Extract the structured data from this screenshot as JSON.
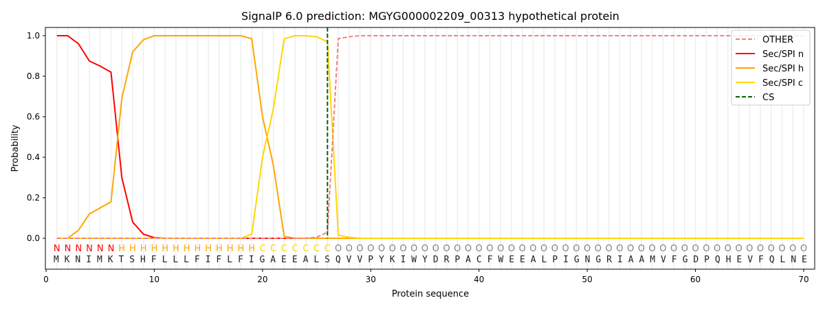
{
  "chart_data": {
    "type": "line",
    "title": "SignalP 6.0 prediction: MGYG000002209_00313 hypothetical protein",
    "xlabel": "Protein sequence",
    "ylabel": "Probability",
    "xlim": [
      0,
      71
    ],
    "ylim": [
      -0.15,
      1.05
    ],
    "xticks": [
      0,
      10,
      20,
      30,
      40,
      50,
      60,
      70
    ],
    "yticks": [
      0.0,
      0.2,
      0.4,
      0.6,
      0.8,
      1.0
    ],
    "ytick_labels": [
      "0.0",
      "0.2",
      "0.4",
      "0.6",
      "0.8",
      "1.0"
    ],
    "legend_position": "top-right",
    "sequence": "MKNIMKTSHFLLLFIFLFIGAEEALSQVVPYKIWYDRPACFWEEALPIGNGRIAAMVFGDPQHEVFQLNE",
    "labels": "NNNNNNHHHHHHHHHHHHHCCCCCCCOOOOOOOOOOOOOOOOOOOOOOOOOOOOOOOOOOOOOOOOOOOO",
    "label_colors": {
      "N": "#ff0000",
      "H": "#ffa500",
      "C": "#ffd700",
      "O": "#808080"
    },
    "cs_position": 26,
    "series": [
      {
        "name": "OTHER",
        "color": "#f08080",
        "dash": true,
        "values": [
          0,
          0,
          0,
          0,
          0,
          0,
          0,
          0,
          0,
          0,
          0,
          0,
          0,
          0,
          0,
          0,
          0,
          0,
          0,
          0,
          0,
          0,
          0,
          0,
          0.005,
          0.03,
          0.985,
          0.995,
          1,
          1,
          1,
          1,
          1,
          1,
          1,
          1,
          1,
          1,
          1,
          1,
          1,
          1,
          1,
          1,
          1,
          1,
          1,
          1,
          1,
          1,
          1,
          1,
          1,
          1,
          1,
          1,
          1,
          1,
          1,
          1,
          1,
          1,
          1,
          1,
          1,
          1,
          1,
          1,
          1,
          1
        ]
      },
      {
        "name": "Sec/SPI n",
        "color": "#ff0000",
        "values": [
          1,
          1,
          0.96,
          0.875,
          0.85,
          0.82,
          0.3,
          0.08,
          0.02,
          0.003,
          0,
          0,
          0,
          0,
          0,
          0,
          0,
          0,
          0,
          0,
          0,
          0,
          0,
          0,
          0,
          0,
          0,
          0,
          0,
          0,
          0,
          0,
          0,
          0,
          0,
          0,
          0,
          0,
          0,
          0,
          0,
          0,
          0,
          0,
          0,
          0,
          0,
          0,
          0,
          0,
          0,
          0,
          0,
          0,
          0,
          0,
          0,
          0,
          0,
          0,
          0,
          0,
          0,
          0,
          0,
          0,
          0,
          0,
          0,
          0
        ]
      },
      {
        "name": "Sec/SPI h",
        "color": "#ffa500",
        "values": [
          0,
          0,
          0.04,
          0.12,
          0.15,
          0.18,
          0.69,
          0.92,
          0.98,
          1,
          1,
          1,
          1,
          1,
          1,
          1,
          1,
          1,
          0.985,
          0.6,
          0.36,
          0.01,
          0,
          0,
          0,
          0,
          0,
          0,
          0,
          0,
          0,
          0,
          0,
          0,
          0,
          0,
          0,
          0,
          0,
          0,
          0,
          0,
          0,
          0,
          0,
          0,
          0,
          0,
          0,
          0,
          0,
          0,
          0,
          0,
          0,
          0,
          0,
          0,
          0,
          0,
          0,
          0,
          0,
          0,
          0,
          0,
          0,
          0,
          0,
          0
        ]
      },
      {
        "name": "Sec/SPI c",
        "color": "#ffd700",
        "values": [
          0,
          0,
          0,
          0,
          0,
          0,
          0,
          0,
          0,
          0,
          0,
          0,
          0,
          0,
          0,
          0,
          0,
          0,
          0.02,
          0.4,
          0.64,
          0.985,
          1,
          1,
          0.995,
          0.97,
          0.015,
          0.005,
          0,
          0,
          0,
          0,
          0,
          0,
          0,
          0,
          0,
          0,
          0,
          0,
          0,
          0,
          0,
          0,
          0,
          0,
          0,
          0,
          0,
          0,
          0,
          0,
          0,
          0,
          0,
          0,
          0,
          0,
          0,
          0,
          0,
          0,
          0,
          0,
          0,
          0,
          0,
          0,
          0,
          0
        ]
      },
      {
        "name": "CS",
        "color": "#006400",
        "dash": true
      }
    ]
  }
}
